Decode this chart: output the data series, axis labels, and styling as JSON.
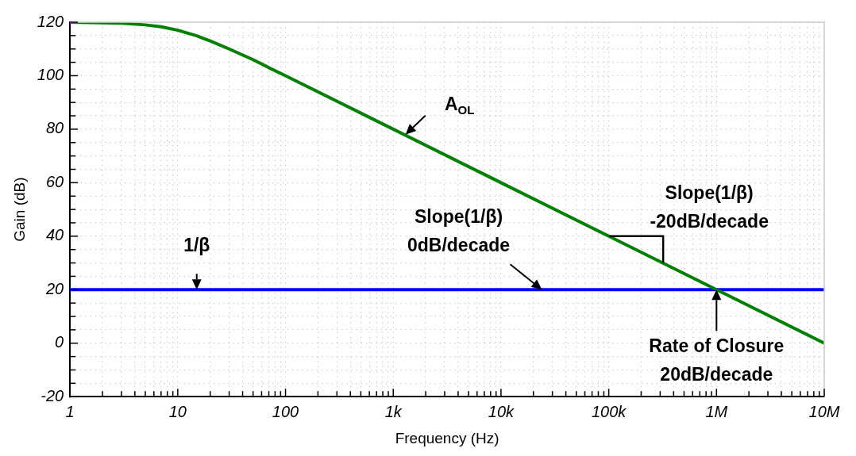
{
  "chart_data": {
    "type": "line",
    "xlabel": "Frequency (Hz)",
    "ylabel": "Gain (dB)",
    "log": "x",
    "grid": true,
    "legend": false,
    "marker": "none",
    "line_style": "solid",
    "xlim": [
      1,
      10000000
    ],
    "ylim": [
      -20,
      120
    ],
    "xticks": [
      1,
      {
        "value": 2,
        "label": null
      },
      {
        "value": 3,
        "label": null
      },
      {
        "value": 4,
        "label": null
      },
      {
        "value": 5,
        "label": null
      },
      {
        "value": 6,
        "label": null
      },
      {
        "value": 7,
        "label": null
      },
      {
        "value": 8,
        "label": null
      },
      {
        "value": 9,
        "label": null
      },
      10,
      {
        "value": 20,
        "label": null
      },
      {
        "value": 30,
        "label": null
      },
      {
        "value": 40,
        "label": null
      },
      {
        "value": 50,
        "label": null
      },
      {
        "value": 60,
        "label": null
      },
      {
        "value": 70,
        "label": null
      },
      {
        "value": 80,
        "label": null
      },
      {
        "value": 90,
        "label": null
      },
      100,
      {
        "value": 200,
        "label": null
      },
      {
        "value": 300,
        "label": null
      },
      {
        "value": 400,
        "label": null
      },
      {
        "value": 500,
        "label": null
      },
      {
        "value": 600,
        "label": null
      },
      {
        "value": 700,
        "label": null
      },
      {
        "value": 800,
        "label": null
      },
      {
        "value": 900,
        "label": null
      },
      {
        "value": 1000,
        "label": "1k"
      },
      {
        "value": 2000,
        "label": null
      },
      {
        "value": 3000,
        "label": null
      },
      {
        "value": 4000,
        "label": null
      },
      {
        "value": 5000,
        "label": null
      },
      {
        "value": 6000,
        "label": null
      },
      {
        "value": 7000,
        "label": null
      },
      {
        "value": 8000,
        "label": null
      },
      {
        "value": 9000,
        "label": null
      },
      {
        "value": 10000,
        "label": "10k"
      },
      {
        "value": 20000,
        "label": null
      },
      {
        "value": 30000,
        "label": null
      },
      {
        "value": 40000,
        "label": null
      },
      {
        "value": 50000,
        "label": null
      },
      {
        "value": 60000,
        "label": null
      },
      {
        "value": 70000,
        "label": null
      },
      {
        "value": 80000,
        "label": null
      },
      {
        "value": 90000,
        "label": null
      },
      {
        "value": 100000,
        "label": "100k"
      },
      {
        "value": 200000,
        "label": null
      },
      {
        "value": 300000,
        "label": null
      },
      {
        "value": 400000,
        "label": null
      },
      {
        "value": 500000,
        "label": null
      },
      {
        "value": 600000,
        "label": null
      },
      {
        "value": 700000,
        "label": null
      },
      {
        "value": 800000,
        "label": null
      },
      {
        "value": 900000,
        "label": null
      },
      {
        "value": 1000000,
        "label": "1M"
      },
      {
        "value": 2000000,
        "label": null
      },
      {
        "value": 3000000,
        "label": null
      },
      {
        "value": 4000000,
        "label": null
      },
      {
        "value": 5000000,
        "label": null
      },
      {
        "value": 6000000,
        "label": null
      },
      {
        "value": 7000000,
        "label": null
      },
      {
        "value": 8000000,
        "label": null
      },
      {
        "value": 9000000,
        "label": null
      },
      {
        "value": 10000000,
        "label": "10M"
      }
    ],
    "yticks": [
      -20,
      {
        "value": -15,
        "label": null
      },
      {
        "value": -10,
        "label": null
      },
      {
        "value": -5,
        "label": null
      },
      0,
      {
        "value": 5,
        "label": null
      },
      {
        "value": 10,
        "label": null
      },
      {
        "value": 15,
        "label": null
      },
      20,
      {
        "value": 25,
        "label": null
      },
      {
        "value": 30,
        "label": null
      },
      {
        "value": 35,
        "label": null
      },
      40,
      {
        "value": 45,
        "label": null
      },
      {
        "value": 50,
        "label": null
      },
      {
        "value": 55,
        "label": null
      },
      60,
      {
        "value": 65,
        "label": null
      },
      {
        "value": 70,
        "label": null
      },
      {
        "value": 75,
        "label": null
      },
      80,
      {
        "value": 85,
        "label": null
      },
      {
        "value": 90,
        "label": null
      },
      {
        "value": 95,
        "label": null
      },
      100,
      {
        "value": 105,
        "label": null
      },
      {
        "value": 110,
        "label": null
      },
      {
        "value": 115,
        "label": null
      },
      120
    ],
    "series": [
      {
        "color": "#008000",
        "x": [
          1,
          2,
          3,
          5,
          7,
          10,
          15,
          20,
          30,
          50,
          70,
          100,
          1000,
          10000,
          100000,
          1000000,
          10000000
        ],
        "values": [
          120,
          119.8,
          119.6,
          119,
          118.3,
          117,
          114.9,
          113,
          110,
          106,
          103,
          100,
          80,
          60,
          40,
          20,
          0
        ]
      },
      {
        "color": "#0000ff",
        "x": [
          1,
          10000000
        ],
        "values": [
          20,
          20
        ]
      }
    ],
    "annotations": [
      {
        "text": "A$_{OL}$",
        "x": 1300,
        "y": 78
      },
      {
        "text": "1/β",
        "x": 15,
        "y": 20
      },
      {
        "text": "Slope(1/β)\n0dB/decade",
        "x": 24000,
        "y": 20
      },
      {
        "text": "Slope(1/β)\n-20dB/decade",
        "x": 320000,
        "y": 30
      },
      {
        "text": "Rate of Closure\n20dB/decade",
        "x": 1000000,
        "y": 20
      }
    ]
  }
}
